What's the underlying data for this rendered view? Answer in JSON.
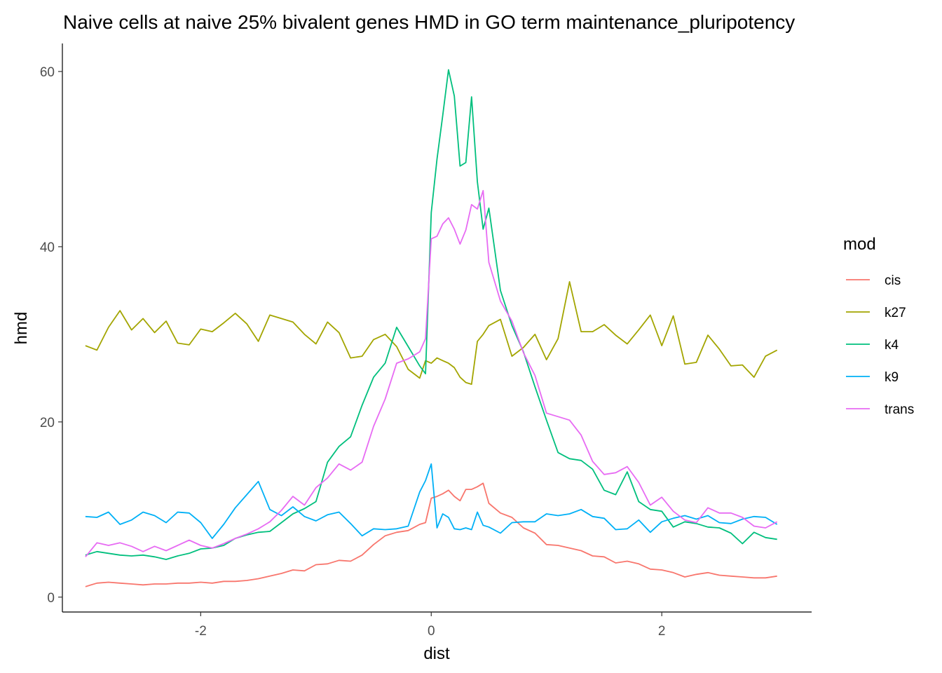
{
  "chart_data": {
    "type": "line",
    "title": "Naive cells at naive 25% bivalent genes HMD in GO term maintenance_pluripotency",
    "xlabel": "dist",
    "ylabel": "hmd",
    "xlim": [
      -3.2,
      3.3
    ],
    "ylim": [
      -1.7,
      63.2
    ],
    "x_ticks": [
      -2,
      0,
      2
    ],
    "y_ticks": [
      0,
      20,
      40,
      60
    ],
    "x_tick_labels": [
      "-2",
      "0",
      "2"
    ],
    "y_tick_labels": [
      "0",
      "20",
      "40",
      "60"
    ],
    "grid": false,
    "legend": {
      "title": "mod",
      "position": "right"
    },
    "x": [
      -3.0,
      -2.9,
      -2.8,
      -2.7,
      -2.6,
      -2.5,
      -2.4,
      -2.3,
      -2.2,
      -2.1,
      -2.0,
      -1.9,
      -1.8,
      -1.7,
      -1.6,
      -1.5,
      -1.4,
      -1.3,
      -1.2,
      -1.1,
      -1.0,
      -0.9,
      -0.8,
      -0.7,
      -0.6,
      -0.5,
      -0.4,
      -0.3,
      -0.2,
      -0.1,
      -0.05,
      0.0,
      0.05,
      0.1,
      0.15,
      0.2,
      0.25,
      0.3,
      0.35,
      0.4,
      0.45,
      0.5,
      0.6,
      0.7,
      0.8,
      0.9,
      1.0,
      1.1,
      1.2,
      1.3,
      1.4,
      1.5,
      1.6,
      1.7,
      1.8,
      1.9,
      2.0,
      2.1,
      2.2,
      2.3,
      2.4,
      2.5,
      2.6,
      2.7,
      2.8,
      2.9,
      3.0
    ],
    "series": [
      {
        "name": "cis",
        "color": "#F8766D",
        "values": [
          1.2,
          1.6,
          1.7,
          1.6,
          1.5,
          1.4,
          1.5,
          1.5,
          1.6,
          1.6,
          1.7,
          1.6,
          1.8,
          1.8,
          1.9,
          2.1,
          2.4,
          2.7,
          3.1,
          3.0,
          3.7,
          3.8,
          4.2,
          4.1,
          4.8,
          6.0,
          7.0,
          7.4,
          7.6,
          8.3,
          8.5,
          11.3,
          11.5,
          11.8,
          12.2,
          11.5,
          11.0,
          12.3,
          12.3,
          12.6,
          13.0,
          10.7,
          9.6,
          9.1,
          7.9,
          7.3,
          6.0,
          5.9,
          5.6,
          5.3,
          4.7,
          4.6,
          3.9,
          4.1,
          3.8,
          3.2,
          3.1,
          2.8,
          2.3,
          2.6,
          2.8,
          2.5,
          2.4,
          2.3,
          2.2,
          2.2,
          2.4
        ]
      },
      {
        "name": "k27",
        "color": "#A3A500",
        "values": [
          28.7,
          28.2,
          30.8,
          32.7,
          30.5,
          31.8,
          30.2,
          31.5,
          29.0,
          28.8,
          30.6,
          30.3,
          31.3,
          32.4,
          31.2,
          29.2,
          32.2,
          31.8,
          31.4,
          30.0,
          28.9,
          31.4,
          30.2,
          27.3,
          27.5,
          29.4,
          30.0,
          28.6,
          26.0,
          25.0,
          27.0,
          26.7,
          27.3,
          27.0,
          26.7,
          26.2,
          25.1,
          24.5,
          24.3,
          29.2,
          30.0,
          31.0,
          31.7,
          27.5,
          28.5,
          30.0,
          27.1,
          29.5,
          36.0,
          30.3,
          30.3,
          31.1,
          29.9,
          28.9,
          30.5,
          32.2,
          28.7,
          32.1,
          26.6,
          26.8,
          29.9,
          28.3,
          26.4,
          26.5,
          25.1,
          27.5,
          28.2
        ]
      },
      {
        "name": "k4",
        "color": "#00BF7D",
        "values": [
          4.8,
          5.2,
          5.0,
          4.8,
          4.7,
          4.8,
          4.6,
          4.3,
          4.7,
          5.0,
          5.5,
          5.6,
          5.9,
          6.7,
          7.1,
          7.4,
          7.5,
          8.5,
          9.5,
          10.1,
          10.9,
          15.4,
          17.2,
          18.3,
          21.9,
          25.1,
          26.7,
          30.8,
          28.6,
          26.4,
          25.5,
          43.9,
          50.0,
          55.0,
          60.2,
          57.2,
          49.2,
          49.6,
          57.1,
          47.4,
          42.0,
          44.4,
          35.0,
          31.0,
          28.0,
          24.0,
          20.2,
          16.5,
          15.8,
          15.6,
          14.6,
          12.2,
          11.7,
          14.3,
          10.9,
          10.0,
          9.8,
          8.0,
          8.6,
          8.4,
          8.0,
          7.9,
          7.3,
          6.1,
          7.4,
          6.8,
          6.6
        ]
      },
      {
        "name": "k9",
        "color": "#00B0F6",
        "values": [
          9.2,
          9.1,
          9.7,
          8.3,
          8.8,
          9.7,
          9.3,
          8.5,
          9.7,
          9.6,
          8.5,
          6.7,
          8.3,
          10.2,
          11.7,
          13.2,
          10.0,
          9.3,
          10.3,
          9.2,
          8.7,
          9.4,
          9.7,
          8.4,
          7.0,
          7.8,
          7.7,
          7.8,
          8.1,
          12.0,
          13.3,
          15.2,
          7.9,
          9.5,
          9.1,
          7.8,
          7.7,
          7.9,
          7.7,
          9.7,
          8.2,
          8.0,
          7.3,
          8.5,
          8.6,
          8.6,
          9.5,
          9.3,
          9.5,
          10.0,
          9.2,
          9.0,
          7.7,
          7.8,
          8.8,
          7.4,
          8.6,
          9.0,
          9.3,
          8.9,
          9.3,
          8.5,
          8.4,
          8.9,
          9.2,
          9.1,
          8.3
        ]
      },
      {
        "name": "trans",
        "color": "#E76BF3",
        "values": [
          4.6,
          6.2,
          5.9,
          6.2,
          5.8,
          5.2,
          5.8,
          5.3,
          5.9,
          6.5,
          5.9,
          5.6,
          6.1,
          6.7,
          7.2,
          7.8,
          8.6,
          9.9,
          11.5,
          10.5,
          12.5,
          13.6,
          15.2,
          14.5,
          15.4,
          19.5,
          22.6,
          26.7,
          27.2,
          28.0,
          29.5,
          40.9,
          41.2,
          42.6,
          43.3,
          42.0,
          40.3,
          41.9,
          44.8,
          44.3,
          46.4,
          38.2,
          33.8,
          31.5,
          27.9,
          25.3,
          21.0,
          20.6,
          20.2,
          18.5,
          15.5,
          14.0,
          14.2,
          14.9,
          13.1,
          10.5,
          11.4,
          9.8,
          8.8,
          8.5,
          10.2,
          9.6,
          9.6,
          9.1,
          8.1,
          7.9,
          8.6
        ]
      }
    ]
  }
}
